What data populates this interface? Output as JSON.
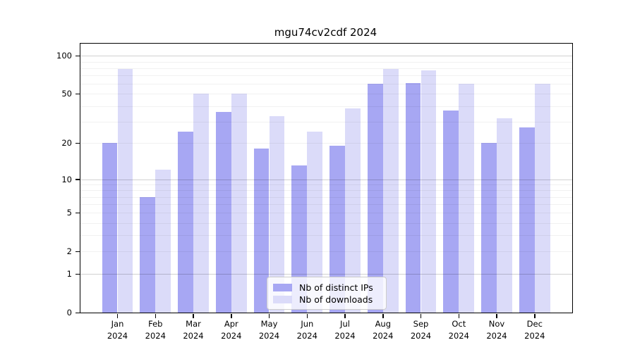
{
  "title": "mgu74cv2cdf 2024",
  "chart_data": {
    "type": "bar",
    "title": "mgu74cv2cdf 2024",
    "categories": [
      "Jan 2024",
      "Feb 2024",
      "Mar 2024",
      "Apr 2024",
      "May 2024",
      "Jun 2024",
      "Jul 2024",
      "Aug 2024",
      "Sep 2024",
      "Oct 2024",
      "Nov 2024",
      "Dec 2024"
    ],
    "series": [
      {
        "name": "Nb of distinct IPs",
        "color": "#a7a7f3",
        "values": [
          20,
          7,
          25,
          36,
          18,
          13,
          19,
          60,
          61,
          37,
          20,
          27
        ]
      },
      {
        "name": "Nb of downloads",
        "color": "#dbdbf9",
        "values": [
          79,
          12,
          50,
          50,
          33,
          25,
          38,
          79,
          77,
          60,
          32,
          60
        ]
      }
    ],
    "y_axis": {
      "scale": "log1p",
      "ticks": [
        0,
        1,
        2,
        5,
        10,
        20,
        50,
        100
      ],
      "major_gridlines": [
        1,
        10,
        100
      ],
      "minor_gridlines": [
        2,
        3,
        4,
        5,
        6,
        7,
        8,
        9,
        20,
        30,
        40,
        50,
        60,
        70,
        80,
        90
      ],
      "range_top": 123,
      "grid": true
    },
    "legend": {
      "position": "bottom-center-inside",
      "entries": [
        "Nb of distinct IPs",
        "Nb of downloads"
      ]
    },
    "colors": {
      "bar_distinct_ips": "#a7a7f3",
      "bar_downloads": "#dbdbf9",
      "axis": "#000000",
      "background": "#ffffff"
    }
  }
}
